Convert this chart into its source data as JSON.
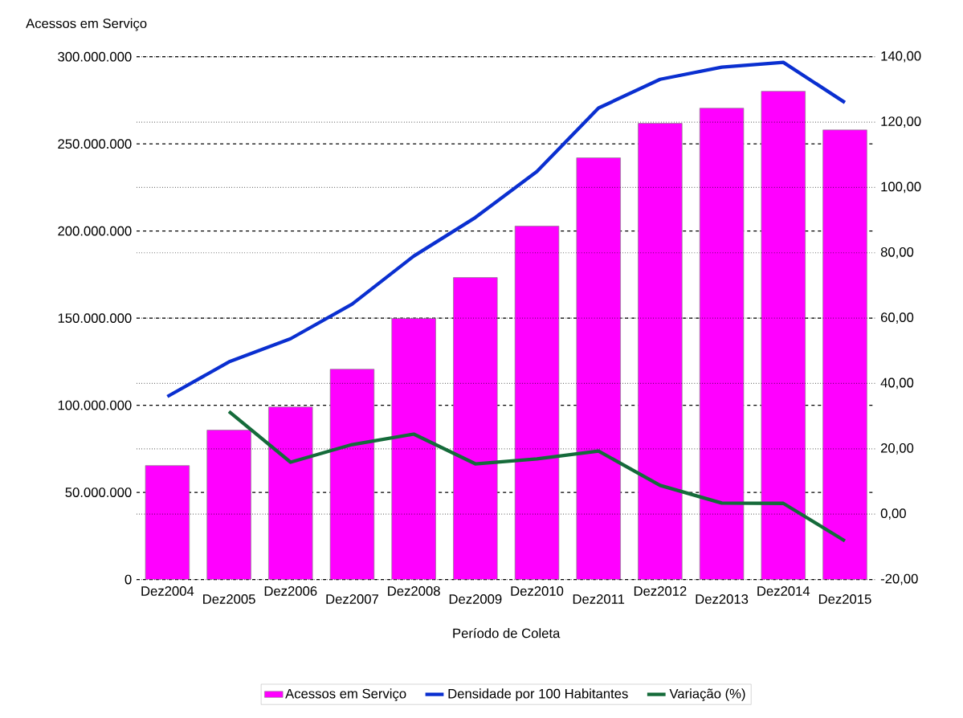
{
  "chart_data": {
    "type": "bar",
    "ylabel": "Acessos em Serviço",
    "xlabel": "Período de Coleta",
    "categories": [
      "Dez2004",
      "Dez2005",
      "Dez2006",
      "Dez2007",
      "Dez2008",
      "Dez2009",
      "Dez2010",
      "Dez2011",
      "Dez2012",
      "Dez2013",
      "Dez2014",
      "Dez2015"
    ],
    "series": [
      {
        "name": "Acessos em Serviço",
        "color": "#ff00ff",
        "values": [
          65400000,
          85700000,
          99000000,
          120700000,
          149800000,
          173300000,
          202800000,
          242000000,
          261800000,
          270500000,
          280200000,
          258000000
        ]
      },
      {
        "name": "Densidade por 100 Habitantes",
        "type": "line",
        "axis": "y2",
        "color": "#0a2fd0",
        "values": [
          36.0,
          46.6,
          53.7,
          64.3,
          79.0,
          90.8,
          104.9,
          124.3,
          133.1,
          136.8,
          138.3,
          126.0
        ]
      },
      {
        "name": "Variação (%)",
        "type": "line",
        "axis": "y2",
        "color": "#156b3a",
        "values": [
          null,
          31.4,
          15.9,
          21.3,
          24.5,
          15.4,
          16.9,
          19.3,
          8.8,
          3.4,
          3.3,
          -8.2
        ]
      }
    ],
    "ylim": [
      0,
      300000000
    ],
    "yticks": [
      {
        "value": 0,
        "label": "0"
      },
      {
        "value": 50000000,
        "label": "50.000.000"
      },
      {
        "value": 100000000,
        "label": "100.000.000"
      },
      {
        "value": 150000000,
        "label": "150.000.000"
      },
      {
        "value": 200000000,
        "label": "200.000.000"
      },
      {
        "value": 250000000,
        "label": "250.000.000"
      },
      {
        "value": 300000000,
        "label": "300.000.000"
      }
    ],
    "y2lim": [
      -20,
      140
    ],
    "y2ticks": [
      {
        "value": -20,
        "label": "-20,00"
      },
      {
        "value": 0,
        "label": "0,00"
      },
      {
        "value": 20,
        "label": "20,00"
      },
      {
        "value": 40,
        "label": "40,00"
      },
      {
        "value": 60,
        "label": "60,00"
      },
      {
        "value": 80,
        "label": "80,00"
      },
      {
        "value": 100,
        "label": "100,00"
      },
      {
        "value": 120,
        "label": "120,00"
      },
      {
        "value": 140,
        "label": "140,00"
      }
    ],
    "grid": true,
    "legend": "bottom",
    "marker": "none",
    "line_style": "solid"
  }
}
